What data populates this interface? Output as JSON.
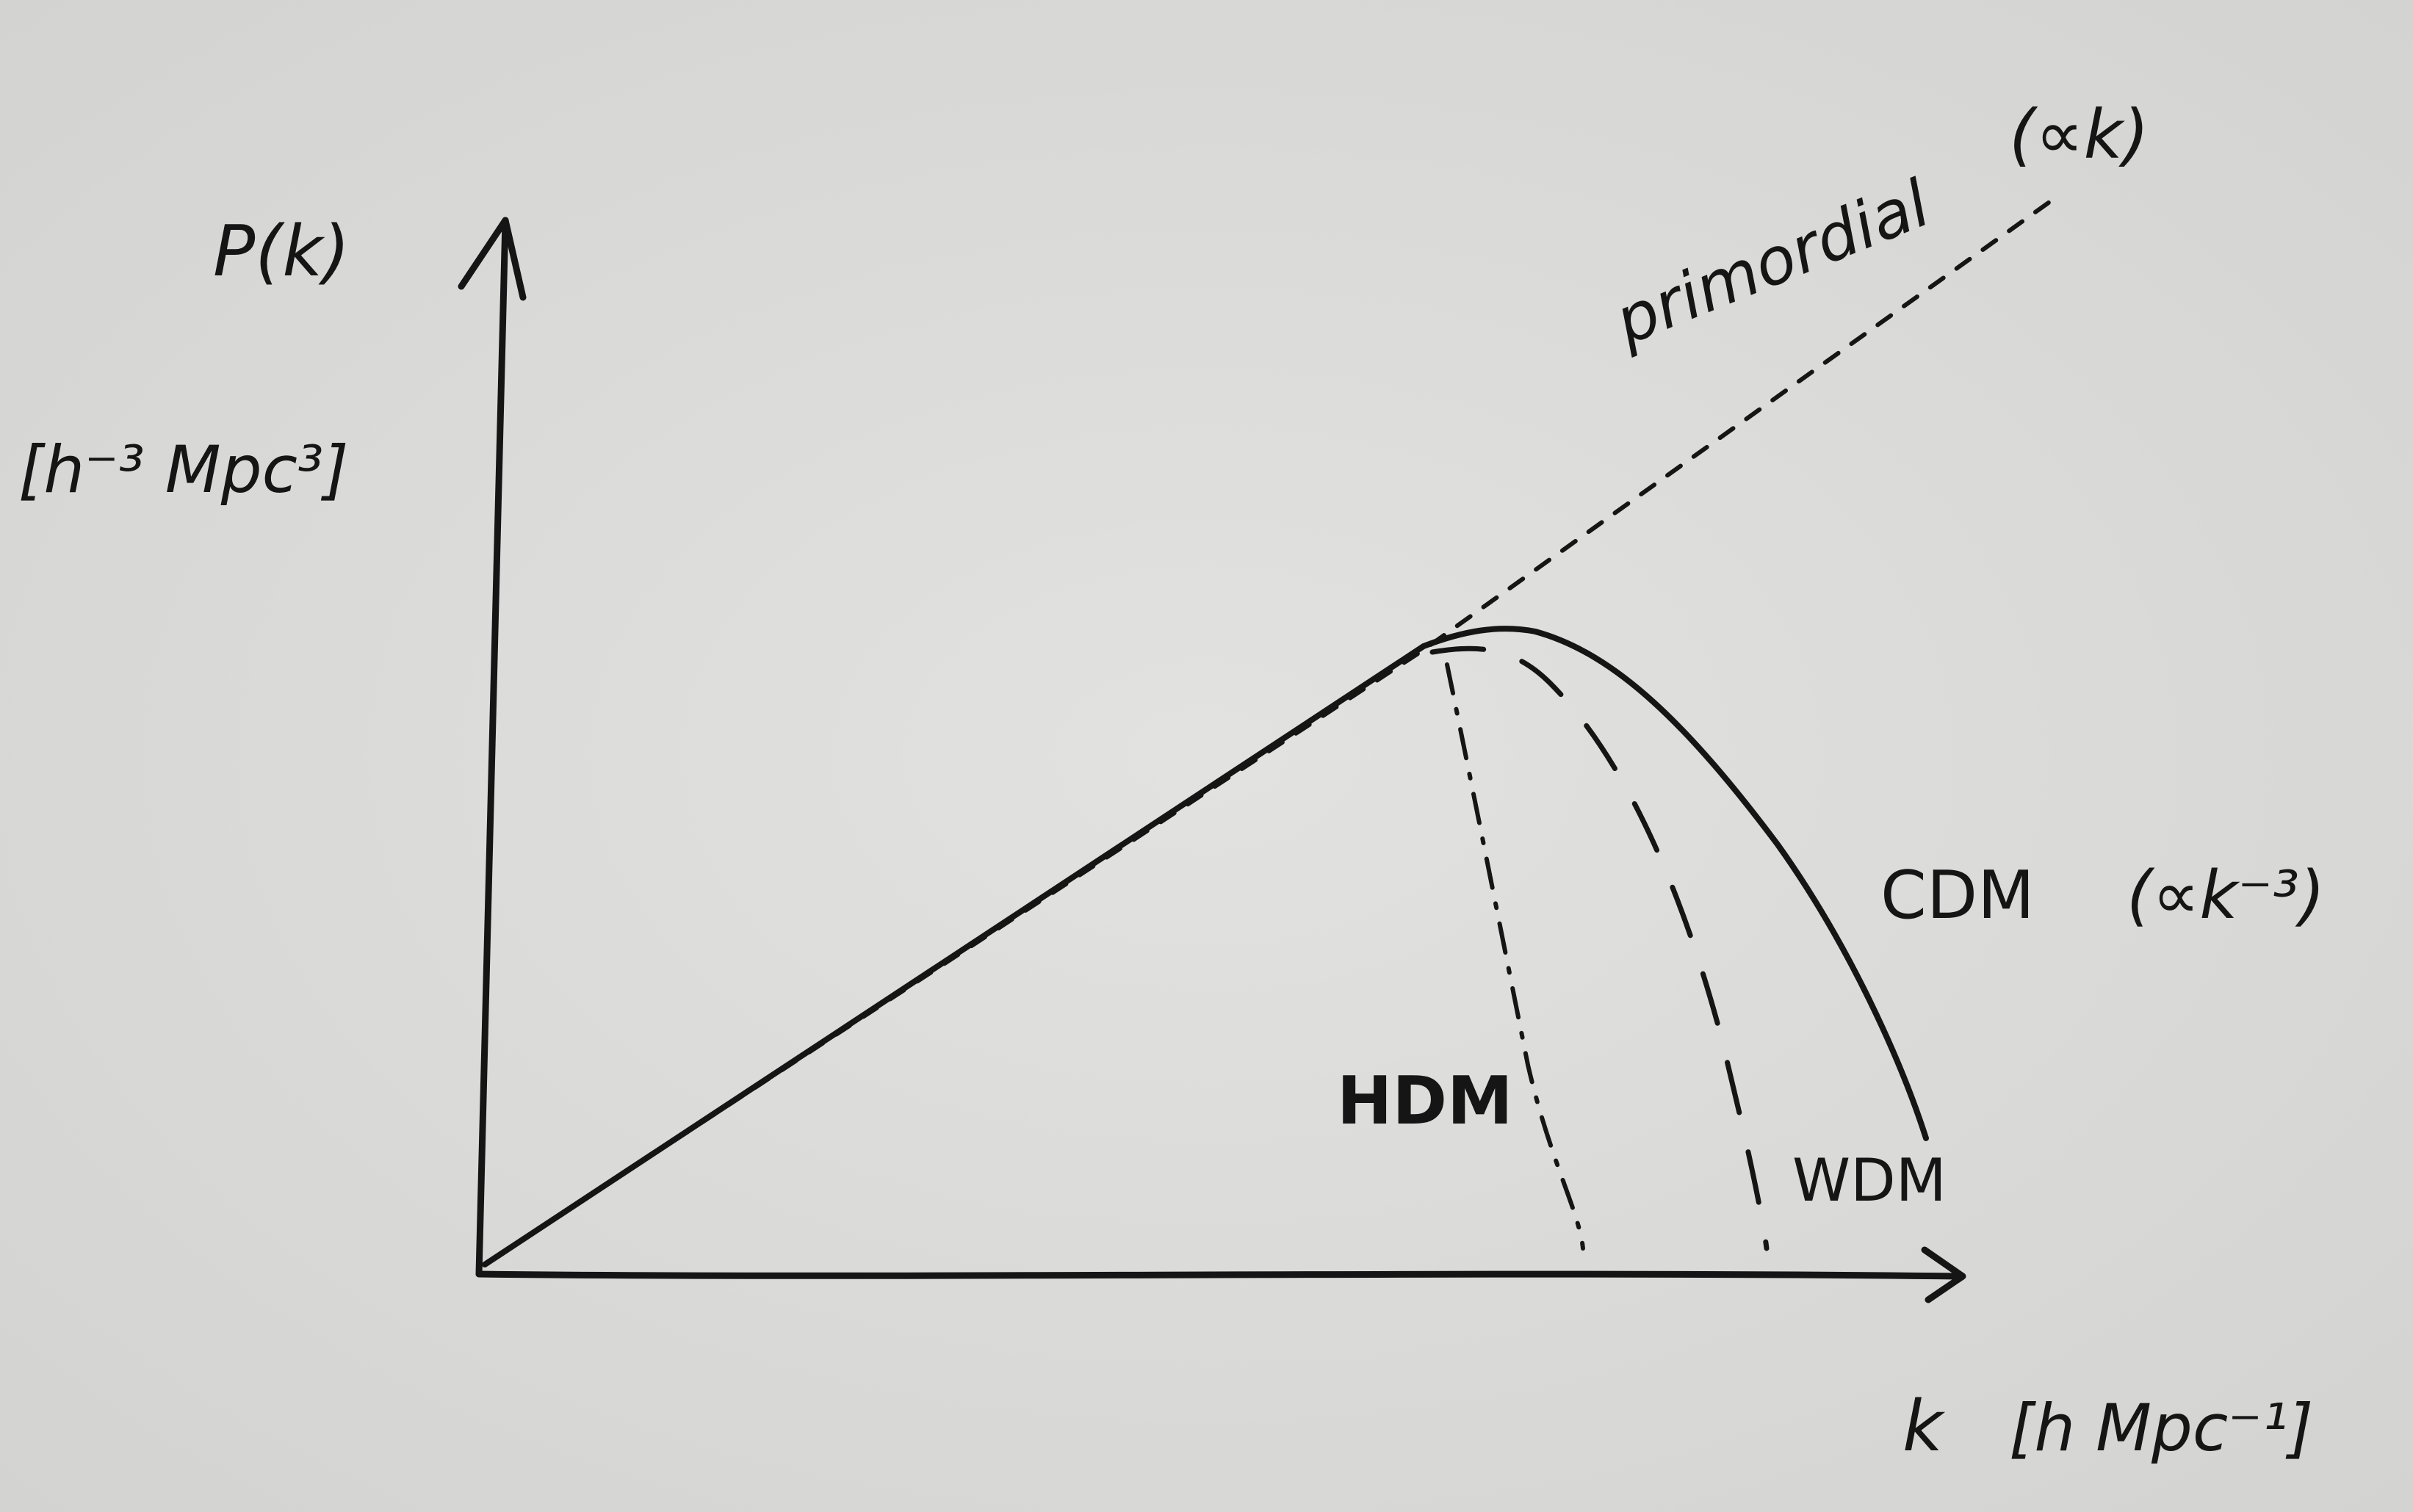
{
  "axes": {
    "y_label": "P(k)",
    "y_unit": "[h⁻³ Mpc³]",
    "x_label": "k",
    "x_unit": "[h Mpc⁻¹]"
  },
  "curves": {
    "primordial": {
      "label": "primordial",
      "scaling": "(∝k)",
      "style": "dashed"
    },
    "cdm": {
      "label": "CDM",
      "scaling": "(∝k⁻³)",
      "style": "solid"
    },
    "wdm": {
      "label": "WDM",
      "style": "long-dashed"
    },
    "hdm": {
      "label": "HDM",
      "style": "dash-dot"
    }
  },
  "colors": {
    "paper": "#dcdcda",
    "ink": "#151515"
  }
}
